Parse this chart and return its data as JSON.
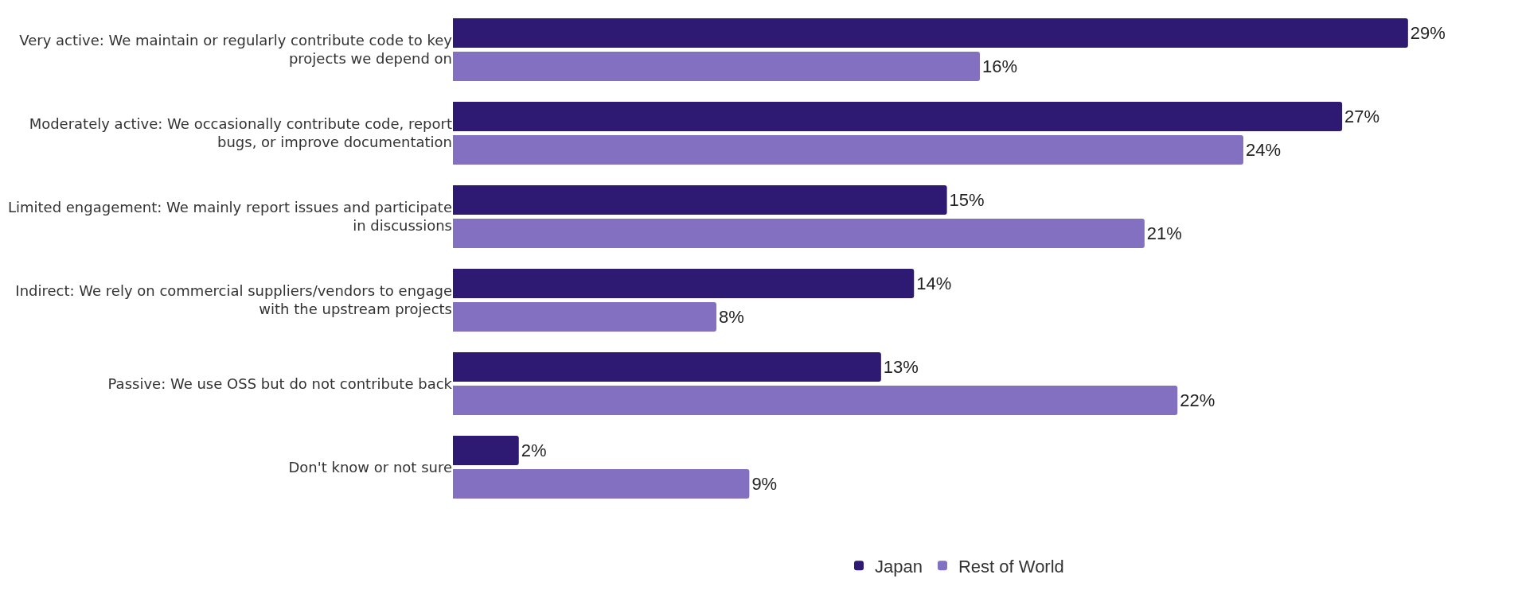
{
  "chart_data": {
    "type": "bar",
    "orientation": "horizontal",
    "categories": [
      "Very active: We maintain or regularly contribute code to key projects we depend on",
      "Moderately active: We occasionally contribute code, report bugs, or improve documentation",
      "Limited engagement: We mainly report issues and participate in discussions",
      "Indirect: We rely on commercial suppliers/vendors to engage with the upstream projects",
      "Passive: We use OSS but do not contribute back",
      "Don't know or not sure"
    ],
    "series": [
      {
        "name": "Japan",
        "color": "#2e1a72",
        "values": [
          29,
          27,
          15,
          14,
          13,
          2
        ],
        "value_labels": [
          "29%",
          "27%",
          "15%",
          "14%",
          "13%",
          "2%"
        ]
      },
      {
        "name": "Rest of World",
        "color": "#8470c1",
        "values": [
          16,
          24,
          21,
          8,
          22,
          9
        ],
        "value_labels": [
          "16%",
          "24%",
          "21%",
          "8%",
          "22%",
          "9%"
        ]
      }
    ],
    "legend": "bottom",
    "grid": false,
    "tick_labels": "y"
  }
}
